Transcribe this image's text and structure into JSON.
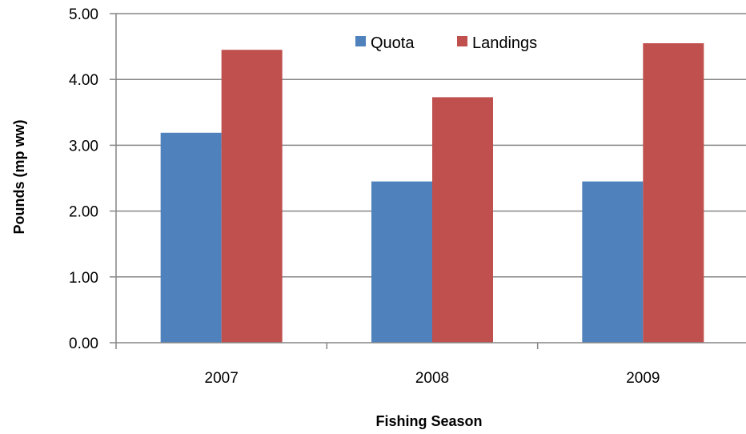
{
  "chart_data": {
    "type": "bar",
    "categories": [
      "2007",
      "2008",
      "2009"
    ],
    "series": [
      {
        "name": "Quota",
        "values": [
          3.19,
          2.45,
          2.45
        ],
        "color": "#4F81BD"
      },
      {
        "name": "Landings",
        "values": [
          4.45,
          3.73,
          4.55
        ],
        "color": "#C0504D"
      }
    ],
    "xlabel": "Fishing Season",
    "ylabel": "Pounds (mp ww)",
    "ylim": [
      0,
      5
    ],
    "yticks": [
      "0.00",
      "1.00",
      "2.00",
      "3.00",
      "4.00",
      "5.00"
    ],
    "grid": true,
    "legend_position": "top-center"
  }
}
